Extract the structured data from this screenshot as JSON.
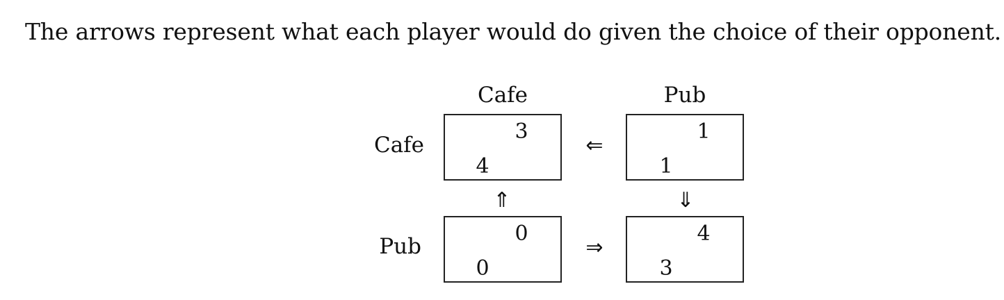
{
  "caption": "The arrows represent what each player would do given the choice of their opponent.",
  "column_labels": [
    "Cafe",
    "Pub"
  ],
  "row_labels": [
    "Cafe",
    "Pub"
  ],
  "payoffs": {
    "cafe_cafe": {
      "row_player": "4",
      "col_player": "3"
    },
    "cafe_pub": {
      "row_player": "1",
      "col_player": "1"
    },
    "pub_cafe": {
      "row_player": "0",
      "col_player": "0"
    },
    "pub_pub": {
      "row_player": "3",
      "col_player": "4"
    }
  },
  "arrows": {
    "top_horizontal": "⇐",
    "bottom_horizontal": "⇒",
    "left_vertical": "⇑",
    "right_vertical": "⇓"
  }
}
